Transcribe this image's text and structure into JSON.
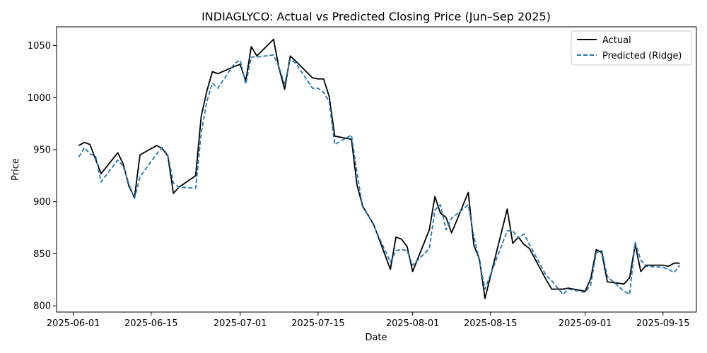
{
  "chart_data": {
    "type": "line",
    "title": "INDIAGLYCO: Actual vs Predicted Closing Price (Jun–Sep 2025)",
    "xlabel": "Date",
    "ylabel": "Price",
    "xlim": [
      "2025-05-29",
      "2025-09-21"
    ],
    "ylim": [
      794,
      1068
    ],
    "x_ticks": [
      "2025-06-01",
      "2025-06-15",
      "2025-07-01",
      "2025-07-15",
      "2025-08-01",
      "2025-08-15",
      "2025-09-01",
      "2025-09-15"
    ],
    "y_ticks": [
      800,
      850,
      900,
      950,
      1000,
      1050
    ],
    "grid": false,
    "legend_position": "top-right",
    "x": [
      "2025-06-02",
      "2025-06-03",
      "2025-06-04",
      "2025-06-05",
      "2025-06-06",
      "2025-06-09",
      "2025-06-10",
      "2025-06-11",
      "2025-06-12",
      "2025-06-13",
      "2025-06-16",
      "2025-06-17",
      "2025-06-18",
      "2025-06-19",
      "2025-06-20",
      "2025-06-23",
      "2025-06-24",
      "2025-06-25",
      "2025-06-26",
      "2025-06-27",
      "2025-06-30",
      "2025-07-01",
      "2025-07-02",
      "2025-07-03",
      "2025-07-04",
      "2025-07-07",
      "2025-07-08",
      "2025-07-09",
      "2025-07-10",
      "2025-07-11",
      "2025-07-14",
      "2025-07-15",
      "2025-07-16",
      "2025-07-17",
      "2025-07-18",
      "2025-07-21",
      "2025-07-22",
      "2025-07-23",
      "2025-07-24",
      "2025-07-25",
      "2025-07-28",
      "2025-07-29",
      "2025-07-30",
      "2025-07-31",
      "2025-08-01",
      "2025-08-04",
      "2025-08-05",
      "2025-08-06",
      "2025-08-07",
      "2025-08-08",
      "2025-08-11",
      "2025-08-12",
      "2025-08-13",
      "2025-08-14",
      "2025-08-18",
      "2025-08-19",
      "2025-08-20",
      "2025-08-21",
      "2025-08-22",
      "2025-08-25",
      "2025-08-26",
      "2025-08-28",
      "2025-08-29",
      "2025-09-01",
      "2025-09-02",
      "2025-09-03",
      "2025-09-04",
      "2025-09-05",
      "2025-09-08",
      "2025-09-09",
      "2025-09-10",
      "2025-09-11",
      "2025-09-12",
      "2025-09-15",
      "2025-09-16",
      "2025-09-17",
      "2025-09-18"
    ],
    "series": [
      {
        "name": "Actual",
        "color": "#000000",
        "style": "solid",
        "values": [
          954,
          957,
          955,
          941,
          927,
          947,
          936,
          915,
          904,
          945,
          954,
          951,
          944,
          908,
          914,
          925,
          982,
          1006,
          1025,
          1023,
          1030,
          1032,
          1016,
          1049,
          1040,
          1056,
          1028,
          1008,
          1040,
          1035,
          1019,
          1018,
          1018,
          1001,
          963,
          960,
          916,
          896,
          887,
          878,
          835,
          866,
          864,
          857,
          833,
          873,
          905,
          889,
          885,
          870,
          909,
          858,
          845,
          807,
          893,
          860,
          866,
          859,
          855,
          825,
          816,
          816,
          817,
          814,
          826,
          854,
          851,
          823,
          821,
          827,
          859,
          833,
          839,
          839,
          838,
          841,
          841
        ]
      },
      {
        "name": "Predicted (Ridge)",
        "color": "#1f77b4",
        "style": "dashed",
        "values": [
          943,
          952,
          946,
          944,
          919,
          940,
          934,
          917,
          903,
          924,
          946,
          952,
          945,
          918,
          914,
          913,
          966,
          996,
          1014,
          1009,
          1033,
          1036,
          1013,
          1039,
          1039,
          1041,
          1029,
          1013,
          1037,
          1033,
          1009,
          1009,
          1005,
          996,
          955,
          964,
          928,
          895,
          887,
          877,
          842,
          853,
          854,
          853,
          839,
          855,
          892,
          897,
          873,
          884,
          897,
          867,
          843,
          816,
          872,
          872,
          865,
          869,
          859,
          829,
          824,
          811,
          816,
          813,
          820,
          851,
          853,
          828,
          814,
          811,
          861,
          844,
          838,
          837,
          835,
          832,
          839
        ]
      }
    ]
  }
}
